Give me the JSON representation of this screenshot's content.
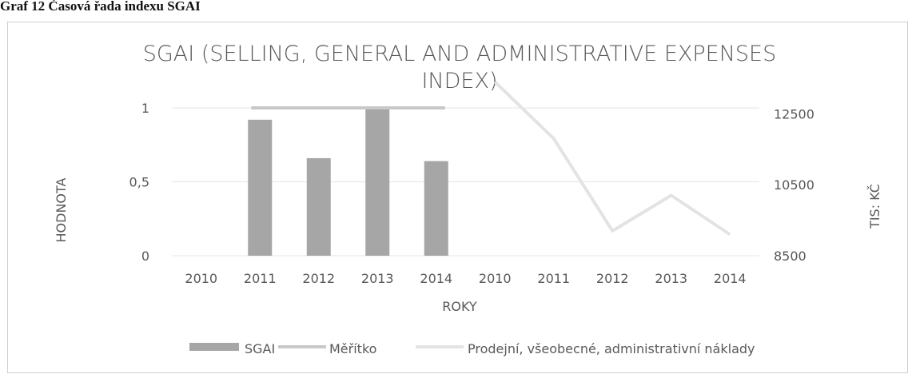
{
  "caption": "Graf 12 Časová řada indexu SGAI",
  "chart_data": {
    "type": "bar",
    "title_line1": "SGAI (SELLING, GENERAL AND ADMINISTRATIVE EXPENSES",
    "title_line2": "INDEX)",
    "xlabel": "ROKY",
    "ylabel": "HODNOTA",
    "y2label": "TIS: KČ",
    "categories": [
      "2010",
      "2011",
      "2012",
      "2013",
      "2014",
      "2010",
      "2011",
      "2012",
      "2013",
      "2014"
    ],
    "ylim": [
      0,
      1.2
    ],
    "yticks": [
      "0",
      "0,5",
      "1"
    ],
    "y2lim": [
      8500,
      13500
    ],
    "y2ticks": [
      "8500",
      "10500",
      "12500"
    ],
    "grid": true,
    "legend_position": "bottom",
    "series": [
      {
        "name": "SGAI",
        "kind": "bar",
        "axis": "left",
        "color": "#a6a6a6",
        "values": [
          null,
          0.92,
          0.66,
          1.0,
          0.64,
          null,
          null,
          null,
          null,
          null
        ]
      },
      {
        "name": "Měřítko",
        "kind": "line",
        "axis": "left",
        "color": "#c8c8c8",
        "values": [
          null,
          1.0,
          1.0,
          1.0,
          1.0,
          null,
          null,
          null,
          null,
          null
        ]
      },
      {
        "name": "Prodejní, všeobecné, administrativní náklady",
        "kind": "line",
        "axis": "right",
        "color": "#e3e3e3",
        "values": [
          null,
          null,
          null,
          null,
          null,
          13400,
          11800,
          9200,
          10200,
          9100
        ]
      }
    ]
  }
}
